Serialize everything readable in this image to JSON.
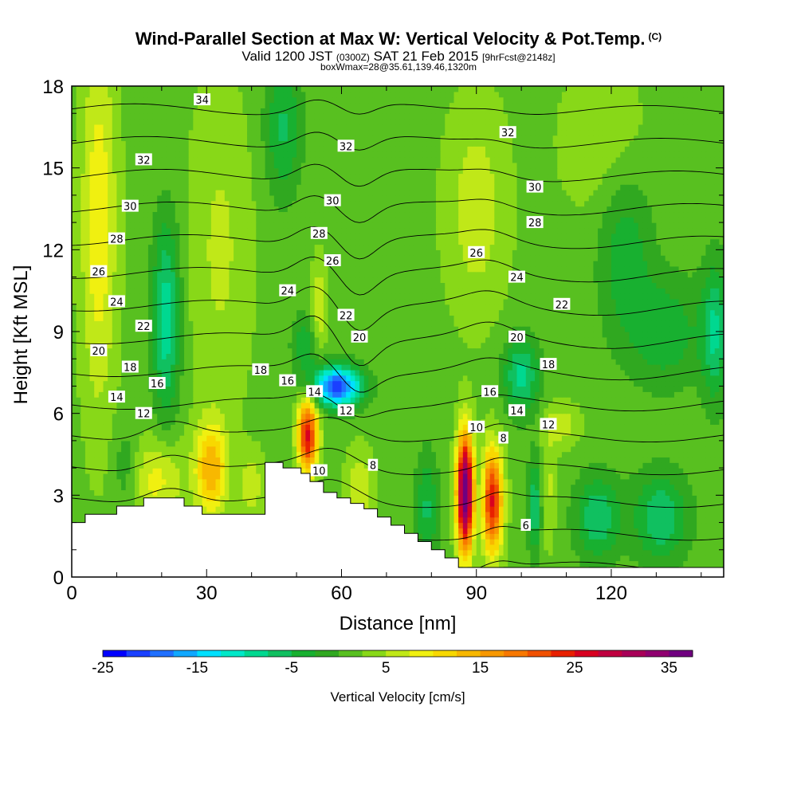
{
  "title": {
    "line1": "Wind-Parallel Section at Max W: Vertical Velocity & Pot.Temp.",
    "line1_suffix": "(C)",
    "line2_main": "Valid 1200 JST",
    "line2_small1": "(0300Z)",
    "line2_mid": "SAT 21 Feb 2015",
    "line2_small2": "[9hrFcst@2148z]",
    "line3": "boxWmax=28@35.61,139.46,1320m"
  },
  "chart_data": {
    "type": "heatmap",
    "xlabel": "Distance [nm]",
    "ylabel": "Height [Kft MSL]",
    "xlim": [
      0,
      145
    ],
    "ylim": [
      0,
      18
    ],
    "xticks": [
      0,
      30,
      60,
      90,
      120
    ],
    "yticks": [
      0,
      3,
      6,
      9,
      12,
      15,
      18
    ],
    "colorbar": {
      "label": "Vertical Velocity [cm/s]",
      "tick_labels": [
        -25,
        -15,
        -5,
        5,
        15,
        25,
        35
      ],
      "levels": [
        -25,
        -22.5,
        -20,
        -17.5,
        -15,
        -12.5,
        -10,
        -7.5,
        -5,
        -2.5,
        0,
        2.5,
        5,
        7.5,
        10,
        12.5,
        15,
        17.5,
        20,
        22.5,
        25,
        27.5,
        30,
        32.5,
        35,
        37.5
      ],
      "colors": [
        "#0000ff",
        "#1a40ff",
        "#2070ff",
        "#10a8ff",
        "#00e0ff",
        "#00e8c8",
        "#00d890",
        "#10c060",
        "#18b030",
        "#30a820",
        "#58c020",
        "#88d818",
        "#c0e818",
        "#f0f010",
        "#f8d800",
        "#f8b800",
        "#f89800",
        "#f87800",
        "#f05000",
        "#e82000",
        "#d80020",
        "#c00040",
        "#a80058",
        "#900070",
        "#700080"
      ]
    },
    "terrain_x": [
      0,
      3,
      3,
      10,
      10,
      16,
      16,
      25,
      25,
      29,
      29,
      43,
      43,
      47,
      47,
      51,
      51,
      53,
      53,
      56,
      56,
      59,
      59,
      62,
      62,
      65,
      65,
      68,
      68,
      71,
      71,
      74,
      74,
      77,
      77,
      80,
      80,
      83,
      83,
      86,
      86,
      145
    ],
    "terrain_h": [
      2.0,
      2.0,
      2.3,
      2.3,
      2.6,
      2.6,
      2.9,
      2.9,
      2.6,
      2.6,
      2.3,
      2.3,
      4.2,
      4.2,
      4.0,
      4.0,
      3.8,
      3.8,
      3.5,
      3.5,
      3.1,
      3.1,
      2.9,
      2.9,
      2.7,
      2.7,
      2.5,
      2.5,
      2.2,
      2.2,
      1.9,
      1.9,
      1.6,
      1.6,
      1.3,
      1.3,
      1.0,
      1.0,
      0.7,
      0.7,
      0.35,
      0.35
    ],
    "theta_levels": [
      6,
      8,
      10,
      12,
      14,
      16,
      18,
      20,
      22,
      24,
      26,
      28,
      30,
      32,
      34
    ],
    "contour_labels": [
      {
        "text": "34",
        "x": 29,
        "y": 17.5
      },
      {
        "text": "32",
        "x": 16,
        "y": 15.3
      },
      {
        "text": "32",
        "x": 61,
        "y": 15.8
      },
      {
        "text": "32",
        "x": 97,
        "y": 16.3
      },
      {
        "text": "30",
        "x": 13,
        "y": 13.6
      },
      {
        "text": "30",
        "x": 58,
        "y": 13.8
      },
      {
        "text": "30",
        "x": 103,
        "y": 14.3
      },
      {
        "text": "28",
        "x": 10,
        "y": 12.4
      },
      {
        "text": "28",
        "x": 55,
        "y": 12.6
      },
      {
        "text": "28",
        "x": 103,
        "y": 13.0
      },
      {
        "text": "26",
        "x": 6,
        "y": 11.2
      },
      {
        "text": "26",
        "x": 58,
        "y": 11.6
      },
      {
        "text": "26",
        "x": 90,
        "y": 11.9
      },
      {
        "text": "24",
        "x": 10,
        "y": 10.1
      },
      {
        "text": "24",
        "x": 48,
        "y": 10.5
      },
      {
        "text": "24",
        "x": 99,
        "y": 11.0
      },
      {
        "text": "22",
        "x": 16,
        "y": 9.2
      },
      {
        "text": "22",
        "x": 61,
        "y": 9.6
      },
      {
        "text": "22",
        "x": 109,
        "y": 10.0
      },
      {
        "text": "20",
        "x": 6,
        "y": 8.3
      },
      {
        "text": "20",
        "x": 64,
        "y": 8.8
      },
      {
        "text": "20",
        "x": 99,
        "y": 8.8
      },
      {
        "text": "18",
        "x": 13,
        "y": 7.7
      },
      {
        "text": "18",
        "x": 42,
        "y": 7.6
      },
      {
        "text": "18",
        "x": 106,
        "y": 7.8
      },
      {
        "text": "16",
        "x": 19,
        "y": 7.1
      },
      {
        "text": "16",
        "x": 48,
        "y": 7.2
      },
      {
        "text": "16",
        "x": 93,
        "y": 6.8
      },
      {
        "text": "14",
        "x": 10,
        "y": 6.6
      },
      {
        "text": "14",
        "x": 54,
        "y": 6.8
      },
      {
        "text": "14",
        "x": 99,
        "y": 6.1
      },
      {
        "text": "12",
        "x": 16,
        "y": 6.0
      },
      {
        "text": "12",
        "x": 61,
        "y": 6.1
      },
      {
        "text": "12",
        "x": 106,
        "y": 5.6
      },
      {
        "text": "10",
        "x": 90,
        "y": 5.5
      },
      {
        "text": "10",
        "x": 55,
        "y": 3.9
      },
      {
        "text": "8",
        "x": 96,
        "y": 5.1
      },
      {
        "text": "8",
        "x": 67,
        "y": 4.1
      },
      {
        "text": "6",
        "x": 101,
        "y": 1.9
      }
    ]
  }
}
